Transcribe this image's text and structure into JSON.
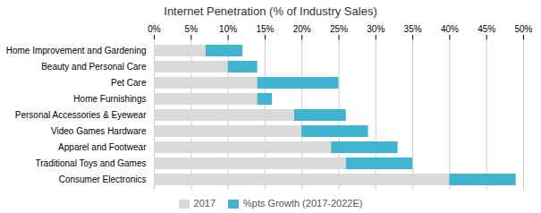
{
  "chart_data": {
    "type": "bar",
    "orientation": "horizontal",
    "stacked": true,
    "title": "Internet Penetration (% of Industry Sales)",
    "categories": [
      "Home Improvement and Gardening",
      "Beauty and Personal Care",
      "Pet Care",
      "Home Furnishings",
      "Personal Accessories & Eyewear",
      "Video Games Hardware",
      "Apparel and Footwear",
      "Traditional Toys and Games",
      "Consumer Electronics"
    ],
    "series": [
      {
        "name": "2017",
        "color": "#d9d9d9",
        "values": [
          7,
          10,
          14,
          14,
          19,
          20,
          24,
          26,
          40
        ]
      },
      {
        "name": "%pts Growth (2017-2022E)",
        "color": "#40b4d0",
        "values": [
          5,
          4,
          11,
          2,
          7,
          9,
          9,
          9,
          9
        ]
      }
    ],
    "xlim": [
      0,
      50
    ],
    "xticks": [
      {
        "value": 0,
        "label": "0%"
      },
      {
        "value": 5,
        "label": "5%"
      },
      {
        "value": 10,
        "label": "10%"
      },
      {
        "value": 15,
        "label": "15%"
      },
      {
        "value": 20,
        "label": "20%"
      },
      {
        "value": 25,
        "label": "25%"
      },
      {
        "value": 30,
        "label": "30%"
      },
      {
        "value": 35,
        "label": "35%"
      },
      {
        "value": 40,
        "label": "40%"
      },
      {
        "value": 45,
        "label": "45%"
      },
      {
        "value": 50,
        "label": "50%"
      }
    ],
    "grid": true,
    "legend": "bottom"
  }
}
